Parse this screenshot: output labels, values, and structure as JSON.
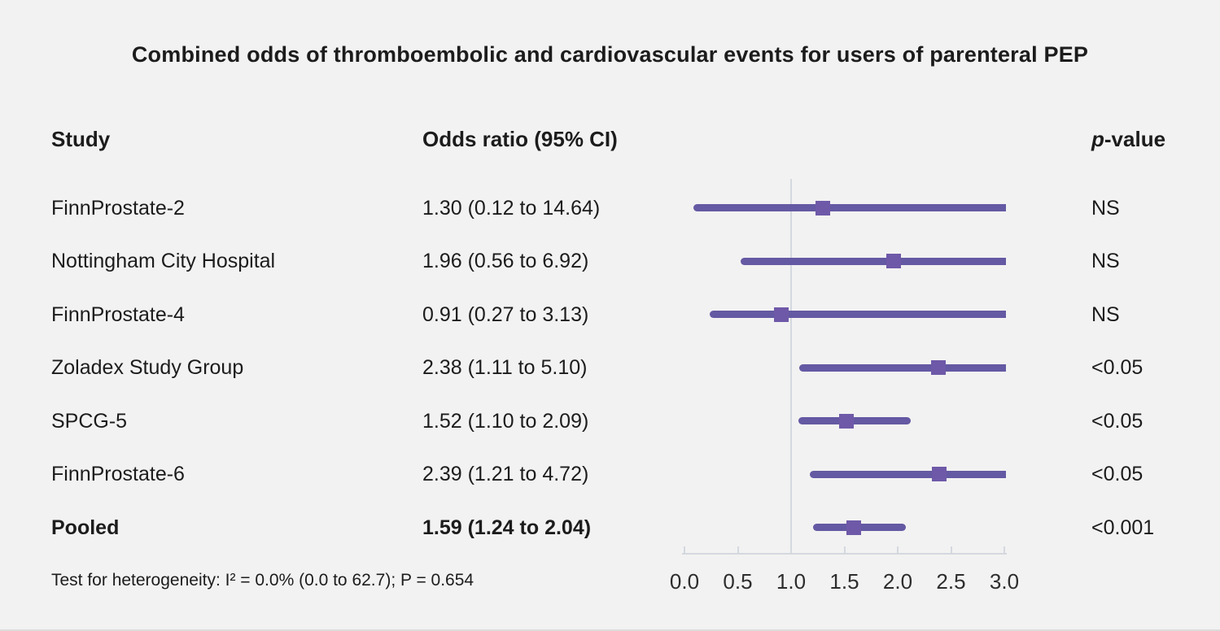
{
  "title": "Combined odds of thromboembolic and cardiovascular events for users of parenteral PEP",
  "header": {
    "study": "Study",
    "odds_ratio": "Odds ratio (95% CI)",
    "pvalue_italic": "p",
    "pvalue_rest": "-value"
  },
  "footer": "Test for heterogeneity: I² = 0.0% (0.0 to 62.7); P = 0.654",
  "colors": {
    "background": "#f2f2f2",
    "text": "#1c1c1c",
    "ci_line": "#6459a3",
    "marker": "#6e59a8",
    "axis": "#d4d8df"
  },
  "chart_data": {
    "type": "forest",
    "title": "Combined odds of thromboembolic and cardiovascular events for users of parenteral PEP",
    "xlabel": "",
    "x_range": [
      0.0,
      3.0
    ],
    "x_ticks": [
      0.0,
      0.5,
      1.0,
      1.5,
      2.0,
      2.5,
      3.0
    ],
    "x_tick_labels": [
      "0.0",
      "0.5",
      "1.0",
      "1.5",
      "2.0",
      "2.5",
      "3.0"
    ],
    "reference_line": 1.0,
    "grid": false,
    "legend": false,
    "rows": [
      {
        "study": "FinnProstate-2",
        "or_label": "1.30 (0.12 to 14.64)",
        "or": 1.3,
        "ci_low": 0.12,
        "ci_high": 14.64,
        "p_value": "NS",
        "bold": false
      },
      {
        "study": "Nottingham City Hospital",
        "or_label": "1.96 (0.56 to 6.92)",
        "or": 1.96,
        "ci_low": 0.56,
        "ci_high": 6.92,
        "p_value": "NS",
        "bold": false
      },
      {
        "study": "FinnProstate-4",
        "or_label": "0.91 (0.27 to 3.13)",
        "or": 0.91,
        "ci_low": 0.27,
        "ci_high": 3.13,
        "p_value": "NS",
        "bold": false
      },
      {
        "study": "Zoladex Study Group",
        "or_label": "2.38 (1.11 to 5.10)",
        "or": 2.38,
        "ci_low": 1.11,
        "ci_high": 5.1,
        "p_value": "<0.05",
        "bold": false
      },
      {
        "study": "SPCG-5",
        "or_label": "1.52 (1.10 to 2.09)",
        "or": 1.52,
        "ci_low": 1.1,
        "ci_high": 2.09,
        "p_value": "<0.05",
        "bold": false
      },
      {
        "study": "FinnProstate-6",
        "or_label": "2.39 (1.21 to 4.72)",
        "or": 2.39,
        "ci_low": 1.21,
        "ci_high": 4.72,
        "p_value": "<0.05",
        "bold": false
      },
      {
        "study": "Pooled",
        "or_label": "1.59 (1.24 to 2.04)",
        "or": 1.59,
        "ci_low": 1.24,
        "ci_high": 2.04,
        "p_value": "<0.001",
        "bold": true
      }
    ],
    "heterogeneity_note": "Test for heterogeneity: I² = 0.0% (0.0 to 62.7); P = 0.654"
  }
}
